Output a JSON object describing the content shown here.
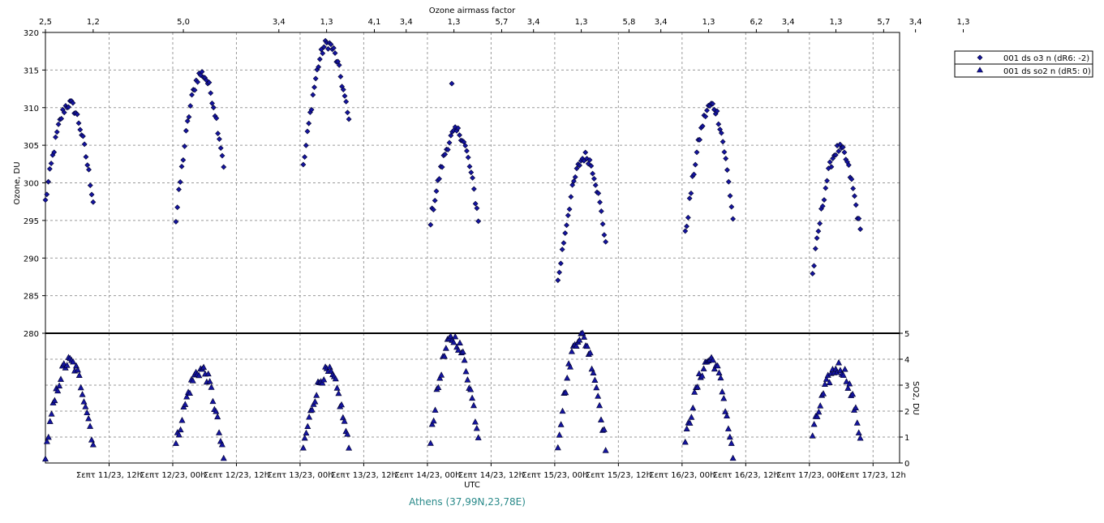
{
  "chart_data": {
    "type": "scatter",
    "top_axis_title": "Ozone airmass factor",
    "top_axis_labels": [
      "2,5",
      "1,2",
      "5,0",
      "3,4",
      "1,3",
      "4,1",
      "3,4",
      "1,3",
      "5,7",
      "3,4",
      "1,3",
      "5,8",
      "3,4",
      "1,3",
      "6,2",
      "3,4",
      "1,3",
      "5,7",
      "3,4",
      "1,3"
    ],
    "top_axis_label_hours": [
      0,
      9,
      26,
      44,
      53,
      62,
      68,
      77,
      86,
      92,
      101,
      110,
      116,
      125,
      134,
      140,
      149,
      158,
      164,
      173
    ],
    "xlabel": "UTC",
    "x_tick_labels": [
      "Σεπτ 11/23, 12h",
      "Σεπτ 12/23, 00h",
      "Σεπτ 12/23, 12h",
      "Σεπτ 13/23, 00h",
      "Σεπτ 13/23, 12h",
      "Σεπτ 14/23, 00h",
      "Σεπτ 14/23, 12h",
      "Σεπτ 15/23, 00h",
      "Σεπτ 15/23, 12h",
      "Σεπτ 16/23, 00h",
      "Σεπτ 16/23, 12h",
      "Σεπτ 17/23, 00h",
      "Σεπτ 17/23, 12h"
    ],
    "x_tick_hours": [
      12,
      24,
      36,
      48,
      60,
      72,
      84,
      96,
      108,
      120,
      132,
      144,
      156
    ],
    "xlim_hours": [
      0,
      161
    ],
    "grid": true,
    "legend_position": "top-right",
    "location": "Athens (37,99N,23,78E)",
    "ozone_panel": {
      "ylabel": "Ozone, DU",
      "ylim": [
        280,
        320
      ],
      "yticks": [
        280,
        285,
        290,
        295,
        300,
        305,
        310,
        315,
        320
      ],
      "series": {
        "name": "001 ds o3  n (dR6: -2)",
        "color": "#1414a0",
        "marker": "diamond",
        "days": [
          {
            "x0": 0,
            "x1": 4.5,
            "x2": 9,
            "y0": 297.5,
            "y1": 310.5,
            "y2": 297.7
          },
          {
            "x0": 24.6,
            "x1": 29.4,
            "x2": 33.6,
            "y0": 295.0,
            "y1": 314.5,
            "y2": 302.5
          },
          {
            "x0": 48.6,
            "x1": 53.2,
            "x2": 57.2,
            "y0": 302.0,
            "y1": 318.5,
            "y2": 308.2
          },
          {
            "x0": 72.6,
            "x1": 77.6,
            "x2": 81.6,
            "y0": 295.0,
            "y1": 306.8,
            "y2": 295.3
          },
          {
            "x0": 96.6,
            "x1": 101.8,
            "x2": 105.6,
            "y0": 286.8,
            "y1": 303.5,
            "y2": 292.2
          },
          {
            "x0": 120.6,
            "x1": 125.6,
            "x2": 129.6,
            "y0": 293.0,
            "y1": 310.3,
            "y2": 295.3
          },
          {
            "x0": 144.6,
            "x1": 149.6,
            "x2": 153.6,
            "y0": 287.8,
            "y1": 304.5,
            "y2": 293.5
          }
        ],
        "outliers": [
          {
            "x": 76.6,
            "y": 313.2
          }
        ]
      }
    },
    "so2_panel": {
      "ylabel": "SO2, DU",
      "ylim": [
        0,
        5
      ],
      "yticks": [
        0,
        1,
        2,
        3,
        4,
        5
      ],
      "series": {
        "name": "001 ds so2 n (dR5: 0)",
        "color": "#1414a0",
        "marker": "triangle",
        "days": [
          {
            "x0": 0,
            "x1": 4.5,
            "x2": 9,
            "y0": 0.4,
            "y1": 3.9,
            "y2": 0.8
          },
          {
            "x0": 24.6,
            "x1": 29.4,
            "x2": 33.6,
            "y0": 0.7,
            "y1": 3.6,
            "y2": 0.1
          },
          {
            "x0": 48.6,
            "x1": 53.2,
            "x2": 57.2,
            "y0": 0.6,
            "y1": 3.5,
            "y2": 0.6
          },
          {
            "x0": 72.6,
            "x1": 76.8,
            "x2": 81.6,
            "y0": 1.0,
            "y1": 4.8,
            "y2": 1.1
          },
          {
            "x0": 96.6,
            "x1": 100.8,
            "x2": 105.6,
            "y0": 0.8,
            "y1": 4.9,
            "y2": 0.7
          },
          {
            "x0": 120.6,
            "x1": 125.4,
            "x2": 129.6,
            "y0": 0.8,
            "y1": 4.0,
            "y2": 0.2
          },
          {
            "x0": 144.6,
            "x1": 149.6,
            "x2": 153.6,
            "y0": 1.1,
            "y1": 3.7,
            "y2": 1.0
          }
        ]
      }
    }
  }
}
